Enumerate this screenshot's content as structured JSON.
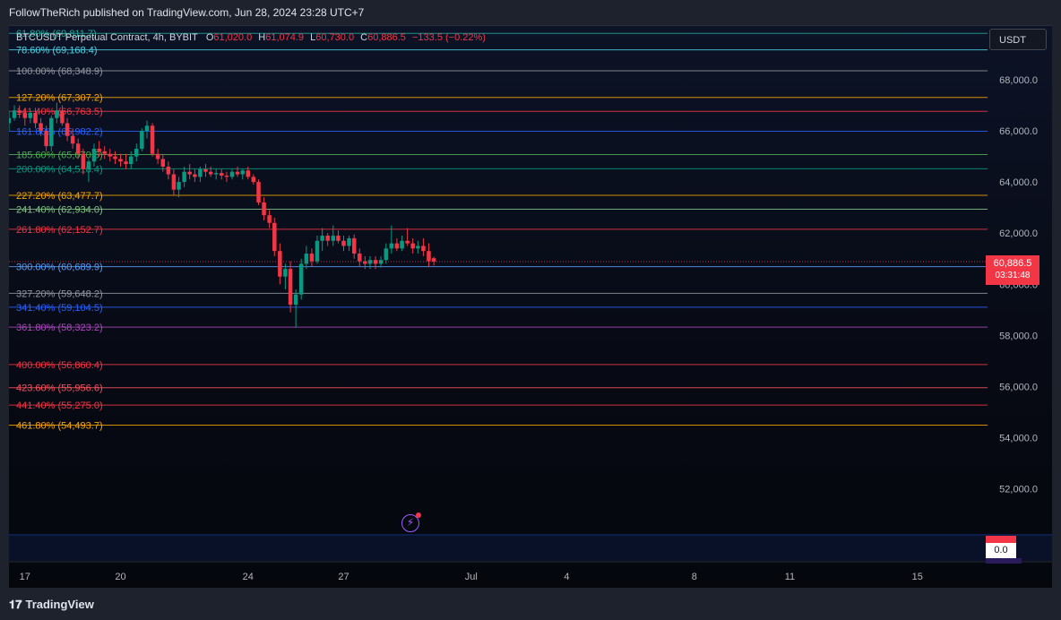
{
  "header": {
    "publisher_line": "FollowTheRich published on TradingView.com, Jun 28, 2024 23:28 UTC+7"
  },
  "legend": {
    "symbol": "BTCUSDT Perpetual Contract, 4h, BYBIT",
    "open_label": "O",
    "open": "61,020.0",
    "high_label": "H",
    "high": "61,074.9",
    "low_label": "L",
    "low": "60,730.0",
    "close_label": "C",
    "close": "60,886.5",
    "change": "−133.5 (−0.22%)"
  },
  "currency_button": "USDT",
  "last_price": {
    "price": "60,886.5",
    "countdown": "03:31:48",
    "color": "#f23645"
  },
  "oscillator": {
    "value": "0.0"
  },
  "icons": {
    "event": "lightning-bolt-icon",
    "brand": "tradingview-logo-icon"
  },
  "footer": {
    "brand": "TradingView"
  },
  "chart_data": {
    "type": "candlestick",
    "y_axis": {
      "range": [
        50200,
        70100
      ],
      "ticks": [
        52000,
        54000,
        56000,
        58000,
        60000,
        62000,
        64000,
        66000,
        68000
      ],
      "tick_labels": [
        "52,000.0",
        "54,000.0",
        "56,000.0",
        "58,000.0",
        "60,000.0",
        "62,000.0",
        "64,000.0",
        "66,000.0",
        "68,000.0"
      ]
    },
    "x_axis": {
      "tick_labels": [
        "17",
        "20",
        "24",
        "27",
        "Jul",
        "4",
        "8",
        "11",
        "15"
      ],
      "tick_day_offsets": [
        0,
        3,
        7,
        10,
        14,
        17,
        21,
        24,
        28
      ],
      "range_days": [
        -0.5,
        30.2
      ]
    },
    "fib_levels": [
      {
        "label": "61.80%",
        "price_text": "(69,811.7)",
        "price": 69811.7,
        "color": "#26a69a"
      },
      {
        "label": "78.60%",
        "price_text": "(69,168.4)",
        "price": 69168.4,
        "color": "#4dd0e1"
      },
      {
        "label": "100.00%",
        "price_text": "(68,348.9)",
        "price": 68348.9,
        "color": "#9598a1"
      },
      {
        "label": "127.20%",
        "price_text": "(67,307.2)",
        "price": 67307.2,
        "color": "#f7a600"
      },
      {
        "label": "141.40%",
        "price_text": "(66,763.5)",
        "price": 66763.5,
        "color": "#f23645"
      },
      {
        "label": "161.80%",
        "price_text": "(65,982.2)",
        "price": 65982.2,
        "color": "#2962ff"
      },
      {
        "label": "185.60%",
        "price_text": "(65,070.5)",
        "price": 65070.5,
        "color": "#4caf50"
      },
      {
        "label": "200.00%",
        "price_text": "(64,518.4)",
        "price": 64518.4,
        "color": "#089981"
      },
      {
        "label": "227.20%",
        "price_text": "(63,477.7)",
        "price": 63477.7,
        "color": "#f7a600"
      },
      {
        "label": "241.40%",
        "price_text": "(62,934.0)",
        "price": 62934.0,
        "color": "#81c784"
      },
      {
        "label": "261.80%",
        "price_text": "(62,152.7)",
        "price": 62152.7,
        "color": "#f23645"
      },
      {
        "label": "300.00%",
        "price_text": "(60,689.9)",
        "price": 60689.9,
        "color": "#5b9cf6"
      },
      {
        "label": "327.20%",
        "price_text": "(59,648.2)",
        "price": 59648.2,
        "color": "#9598a1"
      },
      {
        "label": "341.40%",
        "price_text": "(59,104.5)",
        "price": 59104.5,
        "color": "#2962ff"
      },
      {
        "label": "361.80%",
        "price_text": "(58,323.2)",
        "price": 58323.2,
        "color": "#ab47bc"
      },
      {
        "label": "400.00%",
        "price_text": "(56,860.4)",
        "price": 56860.4,
        "color": "#f23645"
      },
      {
        "label": "423.60%",
        "price_text": "(55,956.6)",
        "price": 55956.6,
        "color": "#f7525f"
      },
      {
        "label": "441.40%",
        "price_text": "(55,275.0)",
        "price": 55275.0,
        "color": "#f23645"
      },
      {
        "label": "461.80%",
        "price_text": "(54,493.7)",
        "price": 54493.7,
        "color": "#f7a600"
      }
    ],
    "candles": [
      {
        "d": -0.5,
        "o": 66300,
        "h": 66800,
        "l": 66000,
        "c": 66500
      },
      {
        "d": -0.33,
        "o": 66500,
        "h": 67000,
        "l": 66400,
        "c": 66800
      },
      {
        "d": -0.17,
        "o": 66800,
        "h": 67000,
        "l": 66500,
        "c": 66700
      },
      {
        "d": 0.0,
        "o": 66700,
        "h": 66900,
        "l": 66200,
        "c": 66500
      },
      {
        "d": 0.17,
        "o": 66500,
        "h": 66800,
        "l": 66300,
        "c": 66700
      },
      {
        "d": 0.33,
        "o": 66700,
        "h": 66900,
        "l": 66100,
        "c": 66300
      },
      {
        "d": 0.5,
        "o": 66300,
        "h": 66500,
        "l": 65800,
        "c": 66000
      },
      {
        "d": 0.67,
        "o": 66000,
        "h": 66200,
        "l": 65200,
        "c": 65400
      },
      {
        "d": 0.83,
        "o": 65400,
        "h": 66600,
        "l": 65200,
        "c": 66500
      },
      {
        "d": 1.0,
        "o": 66500,
        "h": 67100,
        "l": 66300,
        "c": 66800
      },
      {
        "d": 1.17,
        "o": 66800,
        "h": 67000,
        "l": 66200,
        "c": 66300
      },
      {
        "d": 1.33,
        "o": 66300,
        "h": 66500,
        "l": 65600,
        "c": 65800
      },
      {
        "d": 1.5,
        "o": 65800,
        "h": 66100,
        "l": 65300,
        "c": 65500
      },
      {
        "d": 1.67,
        "o": 65500,
        "h": 65700,
        "l": 64900,
        "c": 65100
      },
      {
        "d": 1.83,
        "o": 65100,
        "h": 65300,
        "l": 64300,
        "c": 64500
      },
      {
        "d": 2.0,
        "o": 64500,
        "h": 64900,
        "l": 64000,
        "c": 64800
      },
      {
        "d": 2.17,
        "o": 64800,
        "h": 65500,
        "l": 64600,
        "c": 65300
      },
      {
        "d": 2.33,
        "o": 65300,
        "h": 65600,
        "l": 65000,
        "c": 65200
      },
      {
        "d": 2.5,
        "o": 65200,
        "h": 65400,
        "l": 64900,
        "c": 65100
      },
      {
        "d": 2.67,
        "o": 65100,
        "h": 65300,
        "l": 64800,
        "c": 65000
      },
      {
        "d": 2.83,
        "o": 65000,
        "h": 65200,
        "l": 64700,
        "c": 64900
      },
      {
        "d": 3.0,
        "o": 64900,
        "h": 65100,
        "l": 64600,
        "c": 64800
      },
      {
        "d": 3.17,
        "o": 64800,
        "h": 65100,
        "l": 64500,
        "c": 64700
      },
      {
        "d": 3.33,
        "o": 64700,
        "h": 65200,
        "l": 64500,
        "c": 65000
      },
      {
        "d": 3.5,
        "o": 65000,
        "h": 65500,
        "l": 64800,
        "c": 65300
      },
      {
        "d": 3.67,
        "o": 65300,
        "h": 66100,
        "l": 65200,
        "c": 66000
      },
      {
        "d": 3.83,
        "o": 66000,
        "h": 66400,
        "l": 65700,
        "c": 66200
      },
      {
        "d": 4.0,
        "o": 66200,
        "h": 66300,
        "l": 65000,
        "c": 65100
      },
      {
        "d": 4.17,
        "o": 65100,
        "h": 65300,
        "l": 64700,
        "c": 64900
      },
      {
        "d": 4.33,
        "o": 64900,
        "h": 65100,
        "l": 64400,
        "c": 64600
      },
      {
        "d": 4.5,
        "o": 64600,
        "h": 64800,
        "l": 64100,
        "c": 64300
      },
      {
        "d": 4.67,
        "o": 64300,
        "h": 64500,
        "l": 63500,
        "c": 63700
      },
      {
        "d": 4.83,
        "o": 63700,
        "h": 64200,
        "l": 63400,
        "c": 64000
      },
      {
        "d": 5.0,
        "o": 64000,
        "h": 64600,
        "l": 63800,
        "c": 64400
      },
      {
        "d": 5.17,
        "o": 64400,
        "h": 64700,
        "l": 64100,
        "c": 64300
      },
      {
        "d": 5.33,
        "o": 64300,
        "h": 64500,
        "l": 64000,
        "c": 64200
      },
      {
        "d": 5.5,
        "o": 64200,
        "h": 64600,
        "l": 64000,
        "c": 64500
      },
      {
        "d": 5.67,
        "o": 64500,
        "h": 64700,
        "l": 64200,
        "c": 64400
      },
      {
        "d": 5.83,
        "o": 64400,
        "h": 64600,
        "l": 64200,
        "c": 64300
      },
      {
        "d": 6.0,
        "o": 64300,
        "h": 64500,
        "l": 64100,
        "c": 64350
      },
      {
        "d": 6.17,
        "o": 64350,
        "h": 64500,
        "l": 64100,
        "c": 64250
      },
      {
        "d": 6.33,
        "o": 64250,
        "h": 64400,
        "l": 64000,
        "c": 64200
      },
      {
        "d": 6.5,
        "o": 64200,
        "h": 64500,
        "l": 64100,
        "c": 64400
      },
      {
        "d": 6.67,
        "o": 64400,
        "h": 64600,
        "l": 64200,
        "c": 64300
      },
      {
        "d": 6.83,
        "o": 64300,
        "h": 64500,
        "l": 64100,
        "c": 64450
      },
      {
        "d": 7.0,
        "o": 64450,
        "h": 64600,
        "l": 64100,
        "c": 64200
      },
      {
        "d": 7.17,
        "o": 64200,
        "h": 64300,
        "l": 63900,
        "c": 64000
      },
      {
        "d": 7.33,
        "o": 64000,
        "h": 64100,
        "l": 63100,
        "c": 63200
      },
      {
        "d": 7.5,
        "o": 63200,
        "h": 63400,
        "l": 62500,
        "c": 62700
      },
      {
        "d": 7.67,
        "o": 62700,
        "h": 62900,
        "l": 62200,
        "c": 62400
      },
      {
        "d": 7.83,
        "o": 62400,
        "h": 62600,
        "l": 61100,
        "c": 61300
      },
      {
        "d": 8.0,
        "o": 61300,
        "h": 61600,
        "l": 60000,
        "c": 60300
      },
      {
        "d": 8.17,
        "o": 60300,
        "h": 60800,
        "l": 59800,
        "c": 60600
      },
      {
        "d": 8.33,
        "o": 60600,
        "h": 60900,
        "l": 58900,
        "c": 59200
      },
      {
        "d": 8.5,
        "o": 59200,
        "h": 59800,
        "l": 58300,
        "c": 59600
      },
      {
        "d": 8.67,
        "o": 59600,
        "h": 61000,
        "l": 59400,
        "c": 60800
      },
      {
        "d": 8.83,
        "o": 60800,
        "h": 61500,
        "l": 60600,
        "c": 61200
      },
      {
        "d": 9.0,
        "o": 61200,
        "h": 61400,
        "l": 60700,
        "c": 60900
      },
      {
        "d": 9.17,
        "o": 60900,
        "h": 61900,
        "l": 60800,
        "c": 61700
      },
      {
        "d": 9.33,
        "o": 61700,
        "h": 62200,
        "l": 61300,
        "c": 61900
      },
      {
        "d": 9.5,
        "o": 61900,
        "h": 62000,
        "l": 61500,
        "c": 61700
      },
      {
        "d": 9.67,
        "o": 61700,
        "h": 62300,
        "l": 61500,
        "c": 61900
      },
      {
        "d": 9.83,
        "o": 61900,
        "h": 62100,
        "l": 61600,
        "c": 61700
      },
      {
        "d": 10.0,
        "o": 61700,
        "h": 61900,
        "l": 61300,
        "c": 61500
      },
      {
        "d": 10.17,
        "o": 61500,
        "h": 61900,
        "l": 61300,
        "c": 61800
      },
      {
        "d": 10.33,
        "o": 61800,
        "h": 61950,
        "l": 61000,
        "c": 61200
      },
      {
        "d": 10.5,
        "o": 61200,
        "h": 61400,
        "l": 60700,
        "c": 60900
      },
      {
        "d": 10.67,
        "o": 60900,
        "h": 61100,
        "l": 60600,
        "c": 60800
      },
      {
        "d": 10.83,
        "o": 60800,
        "h": 61100,
        "l": 60600,
        "c": 60950
      },
      {
        "d": 11.0,
        "o": 60950,
        "h": 61100,
        "l": 60600,
        "c": 60800
      },
      {
        "d": 11.17,
        "o": 60800,
        "h": 61100,
        "l": 60650,
        "c": 60950
      },
      {
        "d": 11.33,
        "o": 60950,
        "h": 61600,
        "l": 60800,
        "c": 61400
      },
      {
        "d": 11.5,
        "o": 61400,
        "h": 62300,
        "l": 61200,
        "c": 61600
      },
      {
        "d": 11.67,
        "o": 61600,
        "h": 61800,
        "l": 61300,
        "c": 61400
      },
      {
        "d": 11.83,
        "o": 61400,
        "h": 61900,
        "l": 61300,
        "c": 61700
      },
      {
        "d": 12.0,
        "o": 61700,
        "h": 62200,
        "l": 61500,
        "c": 61600
      },
      {
        "d": 12.17,
        "o": 61600,
        "h": 61800,
        "l": 61200,
        "c": 61400
      },
      {
        "d": 12.33,
        "o": 61400,
        "h": 61700,
        "l": 61200,
        "c": 61500
      },
      {
        "d": 12.5,
        "o": 61500,
        "h": 61800,
        "l": 61100,
        "c": 61300
      },
      {
        "d": 12.67,
        "o": 61300,
        "h": 61600,
        "l": 60700,
        "c": 60900
      },
      {
        "d": 12.83,
        "o": 61020,
        "h": 61075,
        "l": 60730,
        "c": 60886.5
      }
    ],
    "colors": {
      "up": "#089981",
      "down": "#f23645"
    }
  }
}
